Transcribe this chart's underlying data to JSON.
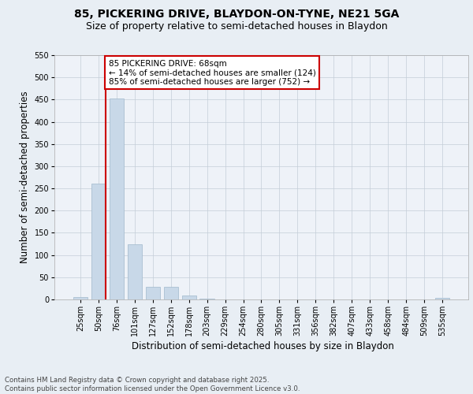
{
  "title_line1": "85, PICKERING DRIVE, BLAYDON-ON-TYNE, NE21 5GA",
  "title_line2": "Size of property relative to semi-detached houses in Blaydon",
  "xlabel": "Distribution of semi-detached houses by size in Blaydon",
  "ylabel": "Number of semi-detached properties",
  "categories": [
    "25sqm",
    "50sqm",
    "76sqm",
    "101sqm",
    "127sqm",
    "152sqm",
    "178sqm",
    "203sqm",
    "229sqm",
    "254sqm",
    "280sqm",
    "305sqm",
    "331sqm",
    "356sqm",
    "382sqm",
    "407sqm",
    "433sqm",
    "458sqm",
    "484sqm",
    "509sqm",
    "535sqm"
  ],
  "values": [
    5,
    260,
    452,
    125,
    28,
    28,
    9,
    1,
    0,
    0,
    0,
    0,
    0,
    0,
    0,
    0,
    0,
    0,
    0,
    0,
    3
  ],
  "bar_color": "#c8d8e8",
  "bar_edgecolor": "#a0b8cc",
  "vline_x_index": 1,
  "vline_color": "#cc0000",
  "annotation_text": "85 PICKERING DRIVE: 68sqm\n← 14% of semi-detached houses are smaller (124)\n85% of semi-detached houses are larger (752) →",
  "annotation_box_color": "#ffffff",
  "annotation_box_edgecolor": "#cc0000",
  "ylim": [
    0,
    550
  ],
  "yticks": [
    0,
    50,
    100,
    150,
    200,
    250,
    300,
    350,
    400,
    450,
    500,
    550
  ],
  "bg_color": "#e8eef4",
  "plot_bg_color": "#eef2f8",
  "footer_text": "Contains HM Land Registry data © Crown copyright and database right 2025.\nContains public sector information licensed under the Open Government Licence v3.0.",
  "title_fontsize": 10,
  "subtitle_fontsize": 9,
  "tick_fontsize": 7,
  "label_fontsize": 8.5,
  "annotation_fontsize": 7.5
}
